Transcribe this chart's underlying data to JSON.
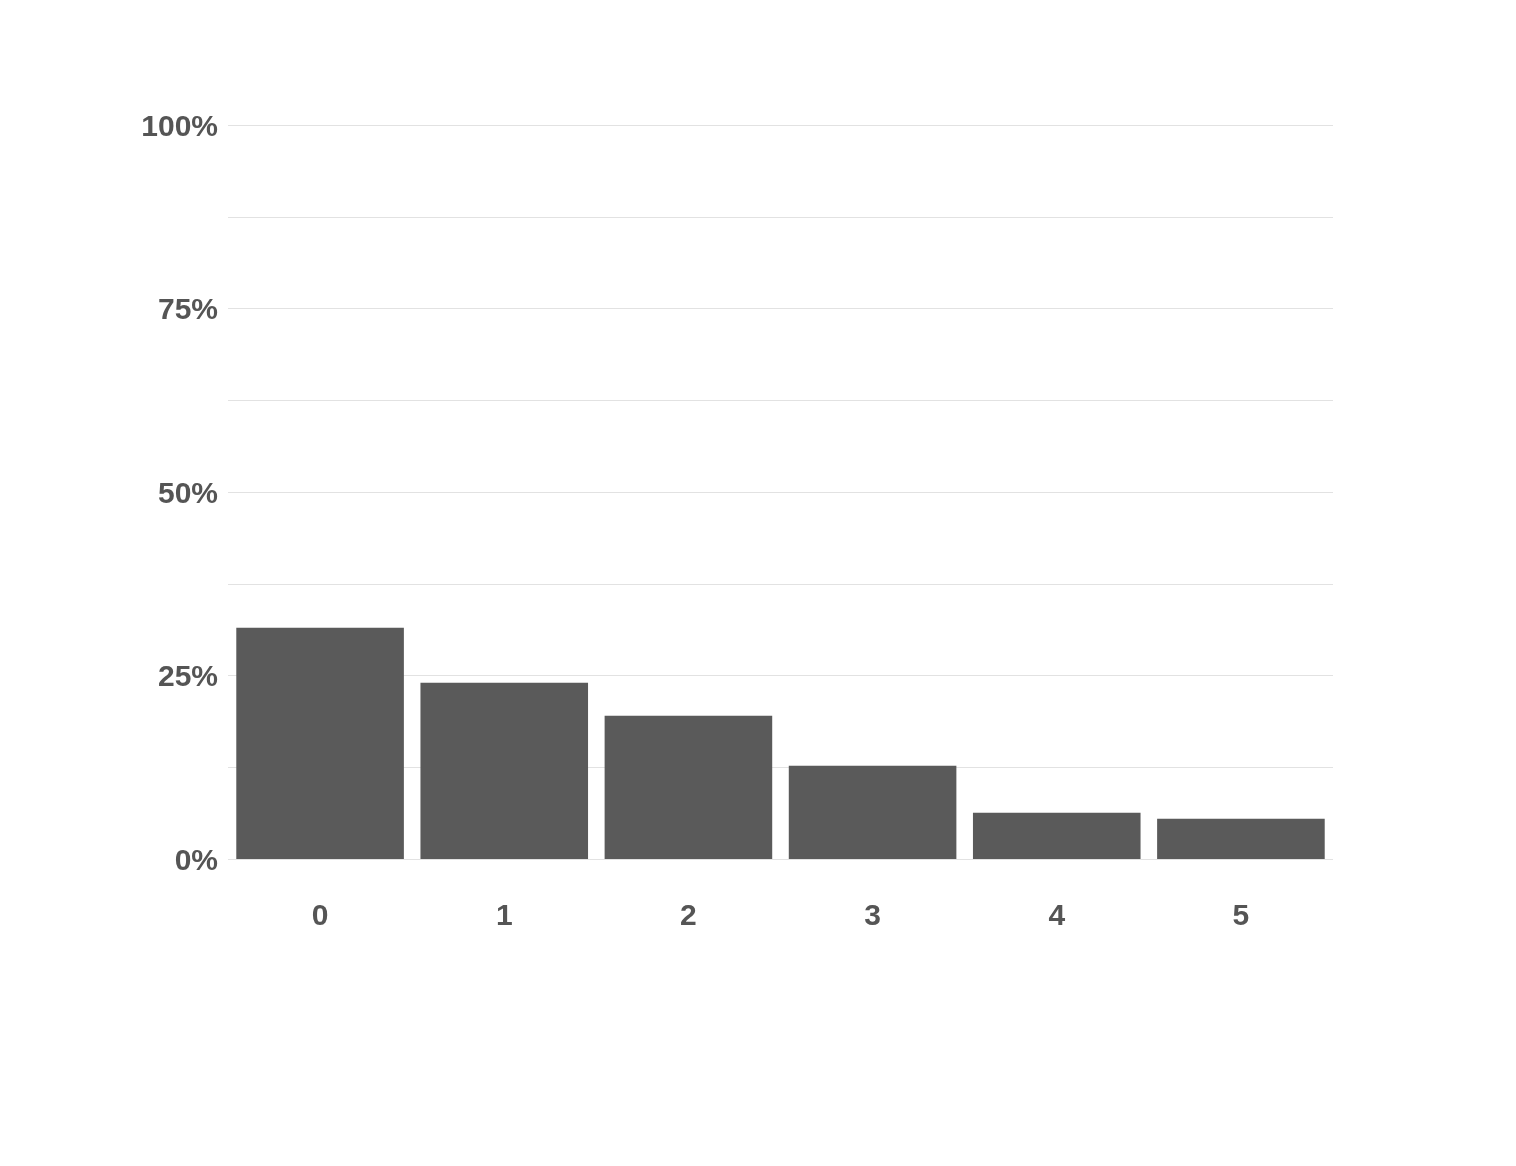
{
  "chart_data": {
    "type": "bar",
    "categories": [
      "0",
      "1",
      "2",
      "3",
      "4",
      "5"
    ],
    "values": [
      31.5,
      24.0,
      19.5,
      12.7,
      6.3,
      5.5
    ],
    "color": "#5a5a5a",
    "ylim": [
      0,
      100
    ],
    "yticks": [
      {
        "value": 0,
        "label": "0%"
      },
      {
        "value": 12.5,
        "label": null
      },
      {
        "value": 25,
        "label": "25%"
      },
      {
        "value": 37.5,
        "label": null
      },
      {
        "value": 50,
        "label": "50%"
      },
      {
        "value": 62.5,
        "label": null
      },
      {
        "value": 75,
        "label": "75%"
      },
      {
        "value": 87.5,
        "label": null
      },
      {
        "value": 100,
        "label": "100%"
      }
    ],
    "grid": "y"
  }
}
